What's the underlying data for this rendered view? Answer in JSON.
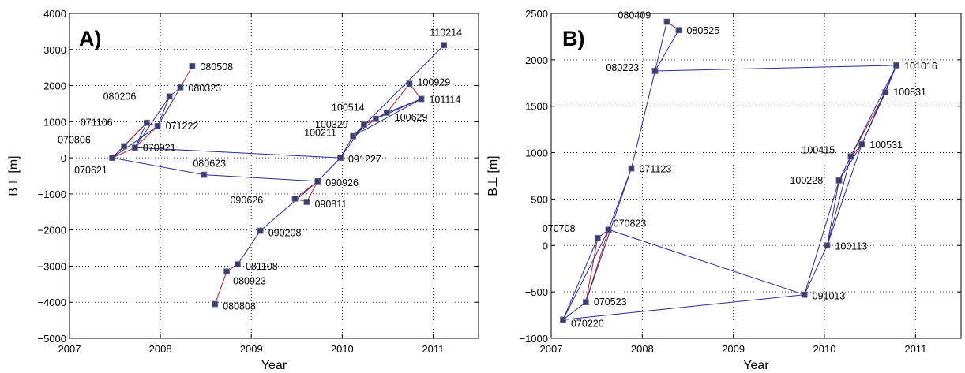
{
  "chart_data": [
    {
      "type": "scatter",
      "panel_label": "A)",
      "xlabel": "Year",
      "ylabel": "B⊥ [m]",
      "xlim": [
        2007,
        2011.5
      ],
      "ylim": [
        -5000,
        4000
      ],
      "xticks": [
        2007,
        2008,
        2009,
        2010,
        2011
      ],
      "yticks": [
        -5000,
        -4000,
        -3000,
        -2000,
        -1000,
        0,
        1000,
        2000,
        3000,
        4000
      ],
      "grid": true,
      "line_colors": {
        "blue": "#2b2b8f",
        "red": "#b3222a"
      },
      "marker_color": "#3d3d6b",
      "points": [
        {
          "label": "070621",
          "x": 2007.47,
          "y": 0
        },
        {
          "label": "070806",
          "x": 2007.6,
          "y": 320
        },
        {
          "label": "070921",
          "x": 2007.72,
          "y": 280
        },
        {
          "label": "071106",
          "x": 2007.85,
          "y": 970
        },
        {
          "label": "071222",
          "x": 2007.97,
          "y": 880
        },
        {
          "label": "080206",
          "x": 2008.1,
          "y": 1700
        },
        {
          "label": "080323",
          "x": 2008.22,
          "y": 1950
        },
        {
          "label": "080508",
          "x": 2008.35,
          "y": 2540
        },
        {
          "label": "080623",
          "x": 2008.48,
          "y": -470
        },
        {
          "label": "080808",
          "x": 2008.6,
          "y": -4050
        },
        {
          "label": "080923",
          "x": 2008.73,
          "y": -3150
        },
        {
          "label": "081108",
          "x": 2008.85,
          "y": -2950
        },
        {
          "label": "090208",
          "x": 2009.1,
          "y": -2020
        },
        {
          "label": "090626",
          "x": 2009.48,
          "y": -1130
        },
        {
          "label": "090811",
          "x": 2009.61,
          "y": -1220
        },
        {
          "label": "090926",
          "x": 2009.73,
          "y": -650
        },
        {
          "label": "091227",
          "x": 2009.98,
          "y": 0
        },
        {
          "label": "100211",
          "x": 2010.12,
          "y": 600
        },
        {
          "label": "100329",
          "x": 2010.24,
          "y": 920
        },
        {
          "label": "100514",
          "x": 2010.37,
          "y": 1080
        },
        {
          "label": "100629",
          "x": 2010.49,
          "y": 1250
        },
        {
          "label": "100929",
          "x": 2010.74,
          "y": 2050
        },
        {
          "label": "101114",
          "x": 2010.87,
          "y": 1630
        },
        {
          "label": "110214",
          "x": 2011.12,
          "y": 3120
        }
      ],
      "connections": [
        [
          "070621",
          "070806",
          "red"
        ],
        [
          "070621",
          "070921",
          "red"
        ],
        [
          "070621",
          "071106",
          "blue"
        ],
        [
          "070621",
          "071222",
          "blue"
        ],
        [
          "070621",
          "080623",
          "blue"
        ],
        [
          "070806",
          "071106",
          "red"
        ],
        [
          "070806",
          "070921",
          "blue"
        ],
        [
          "070921",
          "071106",
          "blue"
        ],
        [
          "070921",
          "071222",
          "red"
        ],
        [
          "070921",
          "080206",
          "blue"
        ],
        [
          "070921",
          "091227",
          "blue"
        ],
        [
          "071106",
          "071222",
          "red"
        ],
        [
          "071222",
          "080206",
          "blue"
        ],
        [
          "071222",
          "080323",
          "blue"
        ],
        [
          "080206",
          "080323",
          "red"
        ],
        [
          "080323",
          "080508",
          "red"
        ],
        [
          "080623",
          "090926",
          "blue"
        ],
        [
          "080808",
          "080923",
          "red"
        ],
        [
          "080923",
          "081108",
          "red"
        ],
        [
          "081108",
          "090208",
          "blue"
        ],
        [
          "090208",
          "090926",
          "blue"
        ],
        [
          "090626",
          "090811",
          "red"
        ],
        [
          "090626",
          "090926",
          "red"
        ],
        [
          "090811",
          "090926",
          "red"
        ],
        [
          "090926",
          "091227",
          "blue"
        ],
        [
          "091227",
          "100211",
          "blue"
        ],
        [
          "091227",
          "100329",
          "blue"
        ],
        [
          "100211",
          "100329",
          "blue"
        ],
        [
          "100211",
          "100514",
          "blue"
        ],
        [
          "100211",
          "101114",
          "blue"
        ],
        [
          "100329",
          "100514",
          "blue"
        ],
        [
          "100329",
          "100629",
          "red"
        ],
        [
          "100514",
          "100629",
          "blue"
        ],
        [
          "100629",
          "100929",
          "red"
        ],
        [
          "100629",
          "101114",
          "blue"
        ],
        [
          "100929",
          "101114",
          "red"
        ],
        [
          "100514",
          "101114",
          "blue"
        ],
        [
          "100211",
          "110214",
          "blue"
        ]
      ]
    },
    {
      "type": "scatter",
      "panel_label": "B)",
      "xlabel": "Year",
      "ylabel": "B⊥ [m]",
      "xlim": [
        2007,
        2011.5
      ],
      "ylim": [
        -1000,
        2500
      ],
      "xticks": [
        2007,
        2008,
        2009,
        2010,
        2011
      ],
      "yticks": [
        -1000,
        -500,
        0,
        500,
        1000,
        1500,
        2000,
        2500
      ],
      "grid": true,
      "line_colors": {
        "blue": "#2b2b8f",
        "red": "#b3222a"
      },
      "marker_color": "#3d3d6b",
      "points": [
        {
          "label": "070220",
          "x": 2007.13,
          "y": -800
        },
        {
          "label": "070523",
          "x": 2007.38,
          "y": -610
        },
        {
          "label": "070708",
          "x": 2007.51,
          "y": 80
        },
        {
          "label": "070823",
          "x": 2007.63,
          "y": 170
        },
        {
          "label": "071123",
          "x": 2007.88,
          "y": 830
        },
        {
          "label": "080223",
          "x": 2008.14,
          "y": 1880
        },
        {
          "label": "080409",
          "x": 2008.27,
          "y": 2410
        },
        {
          "label": "080525",
          "x": 2008.4,
          "y": 2320
        },
        {
          "label": "091013",
          "x": 2009.78,
          "y": -530
        },
        {
          "label": "100113",
          "x": 2010.03,
          "y": 0
        },
        {
          "label": "100228",
          "x": 2010.16,
          "y": 700
        },
        {
          "label": "100415",
          "x": 2010.29,
          "y": 960
        },
        {
          "label": "100531",
          "x": 2010.41,
          "y": 1090
        },
        {
          "label": "100831",
          "x": 2010.67,
          "y": 1650
        },
        {
          "label": "101016",
          "x": 2010.79,
          "y": 1940
        }
      ],
      "connections": [
        [
          "070220",
          "070523",
          "blue"
        ],
        [
          "070220",
          "070708",
          "blue"
        ],
        [
          "070220",
          "070823",
          "blue"
        ],
        [
          "070220",
          "091013",
          "blue"
        ],
        [
          "070523",
          "070708",
          "red"
        ],
        [
          "070523",
          "070823",
          "red"
        ],
        [
          "070523",
          "071123",
          "blue"
        ],
        [
          "070708",
          "070823",
          "blue"
        ],
        [
          "070823",
          "071123",
          "blue"
        ],
        [
          "070823",
          "091013",
          "blue"
        ],
        [
          "071123",
          "080223",
          "blue"
        ],
        [
          "080223",
          "080409",
          "blue"
        ],
        [
          "080223",
          "080525",
          "blue"
        ],
        [
          "080223",
          "101016",
          "blue"
        ],
        [
          "080409",
          "080525",
          "red"
        ],
        [
          "091013",
          "100113",
          "blue"
        ],
        [
          "091013",
          "100228",
          "blue"
        ],
        [
          "100113",
          "100228",
          "blue"
        ],
        [
          "100113",
          "100415",
          "blue"
        ],
        [
          "100113",
          "100531",
          "blue"
        ],
        [
          "100228",
          "100415",
          "blue"
        ],
        [
          "100228",
          "100531",
          "blue"
        ],
        [
          "100415",
          "100531",
          "red"
        ],
        [
          "100415",
          "100831",
          "red"
        ],
        [
          "100531",
          "100831",
          "blue"
        ],
        [
          "100531",
          "101016",
          "blue"
        ],
        [
          "100831",
          "101016",
          "blue"
        ],
        [
          "100415",
          "101016",
          "blue"
        ]
      ]
    }
  ]
}
